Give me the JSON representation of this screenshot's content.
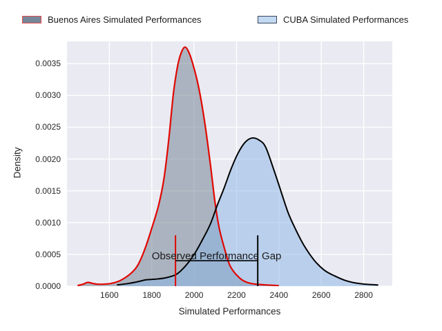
{
  "figure": {
    "plot_background": "#eaeaf2",
    "grid_color": "#ffffff",
    "tick_text_color": "#262626"
  },
  "legend": {
    "items": [
      {
        "key": "buenos_aires",
        "label": "Buenos Aires Simulated Performances",
        "swatch_fill": "#76879a",
        "swatch_border": "#e14949"
      },
      {
        "key": "cuba",
        "label": "CUBA Simulated Performances",
        "swatch_fill": "#c3d9f2",
        "swatch_border": "#36455c"
      }
    ]
  },
  "axes": {
    "xlabel": "Simulated Performances",
    "ylabel": "Density",
    "xticks": [
      1600,
      1800,
      2000,
      2200,
      2400,
      2600,
      2800
    ],
    "ytick_values": [
      0,
      0.0005,
      0.001,
      0.0015,
      0.002,
      0.0025,
      0.003,
      0.0035
    ],
    "ytick_labels": [
      "0.0000",
      "0.0005",
      "0.0010",
      "0.0015",
      "0.0020",
      "0.0025",
      "0.0030",
      "0.0035"
    ]
  },
  "chart_data": {
    "type": "area",
    "subtype": "kde-density",
    "title": "",
    "xlabel": "Simulated Performances",
    "ylabel": "Density",
    "xlim": [
      1400,
      2935
    ],
    "ylim": [
      0,
      0.00385
    ],
    "grid": true,
    "legend_position": "top",
    "series": [
      {
        "key": "buenos_aires",
        "name": "Buenos Aires Simulated Performances",
        "line_color": "#e10600",
        "line_width": 2.2,
        "fill_color": "rgba(112,128,144,0.52)",
        "points": [
          [
            1450,
            1e-05
          ],
          [
            1475,
            3e-05
          ],
          [
            1499,
            6e-05
          ],
          [
            1525,
            4e-05
          ],
          [
            1551,
            3e-05
          ],
          [
            1603,
            4e-05
          ],
          [
            1652,
            9e-05
          ],
          [
            1701,
            0.0002
          ],
          [
            1734,
            0.00033
          ],
          [
            1766,
            0.00057
          ],
          [
            1799,
            0.0009
          ],
          [
            1832,
            0.00127
          ],
          [
            1858,
            0.0017
          ],
          [
            1880,
            0.0023
          ],
          [
            1903,
            0.00305
          ],
          [
            1923,
            0.00348
          ],
          [
            1940,
            0.00368
          ],
          [
            1957,
            0.00376
          ],
          [
            1975,
            0.00368
          ],
          [
            1995,
            0.00348
          ],
          [
            2020,
            0.00315
          ],
          [
            2048,
            0.00262
          ],
          [
            2075,
            0.00196
          ],
          [
            2098,
            0.00133
          ],
          [
            2118,
            0.00092
          ],
          [
            2145,
            0.00057
          ],
          [
            2168,
            0.00033
          ],
          [
            2194,
            0.0002
          ],
          [
            2230,
            9e-05
          ],
          [
            2272,
            4e-05
          ],
          [
            2337,
            2e-05
          ],
          [
            2400,
            1e-05
          ]
        ]
      },
      {
        "key": "cuba",
        "name": "CUBA Simulated Performances",
        "line_color": "#000000",
        "line_width": 2,
        "fill_color": "rgba(135,180,230,0.5)",
        "points": [
          [
            1636,
            2e-05
          ],
          [
            1685,
            4e-05
          ],
          [
            1734,
            7e-05
          ],
          [
            1773,
            0.0001
          ],
          [
            1815,
            0.00011
          ],
          [
            1864,
            0.00013
          ],
          [
            1913,
            0.00018
          ],
          [
            1946,
            0.00027
          ],
          [
            1979,
            0.0004
          ],
          [
            2011,
            0.00056
          ],
          [
            2044,
            0.00076
          ],
          [
            2077,
            0.00098
          ],
          [
            2109,
            0.00127
          ],
          [
            2142,
            0.00155
          ],
          [
            2174,
            0.00184
          ],
          [
            2207,
            0.00209
          ],
          [
            2240,
            0.00226
          ],
          [
            2272,
            0.00233
          ],
          [
            2305,
            0.0023
          ],
          [
            2337,
            0.00219
          ],
          [
            2377,
            0.00182
          ],
          [
            2409,
            0.0015
          ],
          [
            2442,
            0.00117
          ],
          [
            2475,
            0.00092
          ],
          [
            2517,
            0.00065
          ],
          [
            2566,
            0.00041
          ],
          [
            2615,
            0.00025
          ],
          [
            2664,
            0.00016
          ],
          [
            2713,
            9e-05
          ],
          [
            2762,
            5e-05
          ],
          [
            2811,
            3e-05
          ],
          [
            2869,
            2e-05
          ]
        ]
      }
    ],
    "annotations": {
      "label": "Observed Performance Gap",
      "label_color": "#1a1a1a",
      "vlines": [
        {
          "x": 1912,
          "ymin": 0,
          "ymax": 0.0008,
          "color": "#e10600"
        },
        {
          "x": 2300,
          "ymin": 0,
          "ymax": 0.0008,
          "color": "#000000"
        }
      ],
      "hline": {
        "y": 0.0004,
        "x1": 1912,
        "x2": 2300,
        "color": "#000000"
      }
    }
  }
}
